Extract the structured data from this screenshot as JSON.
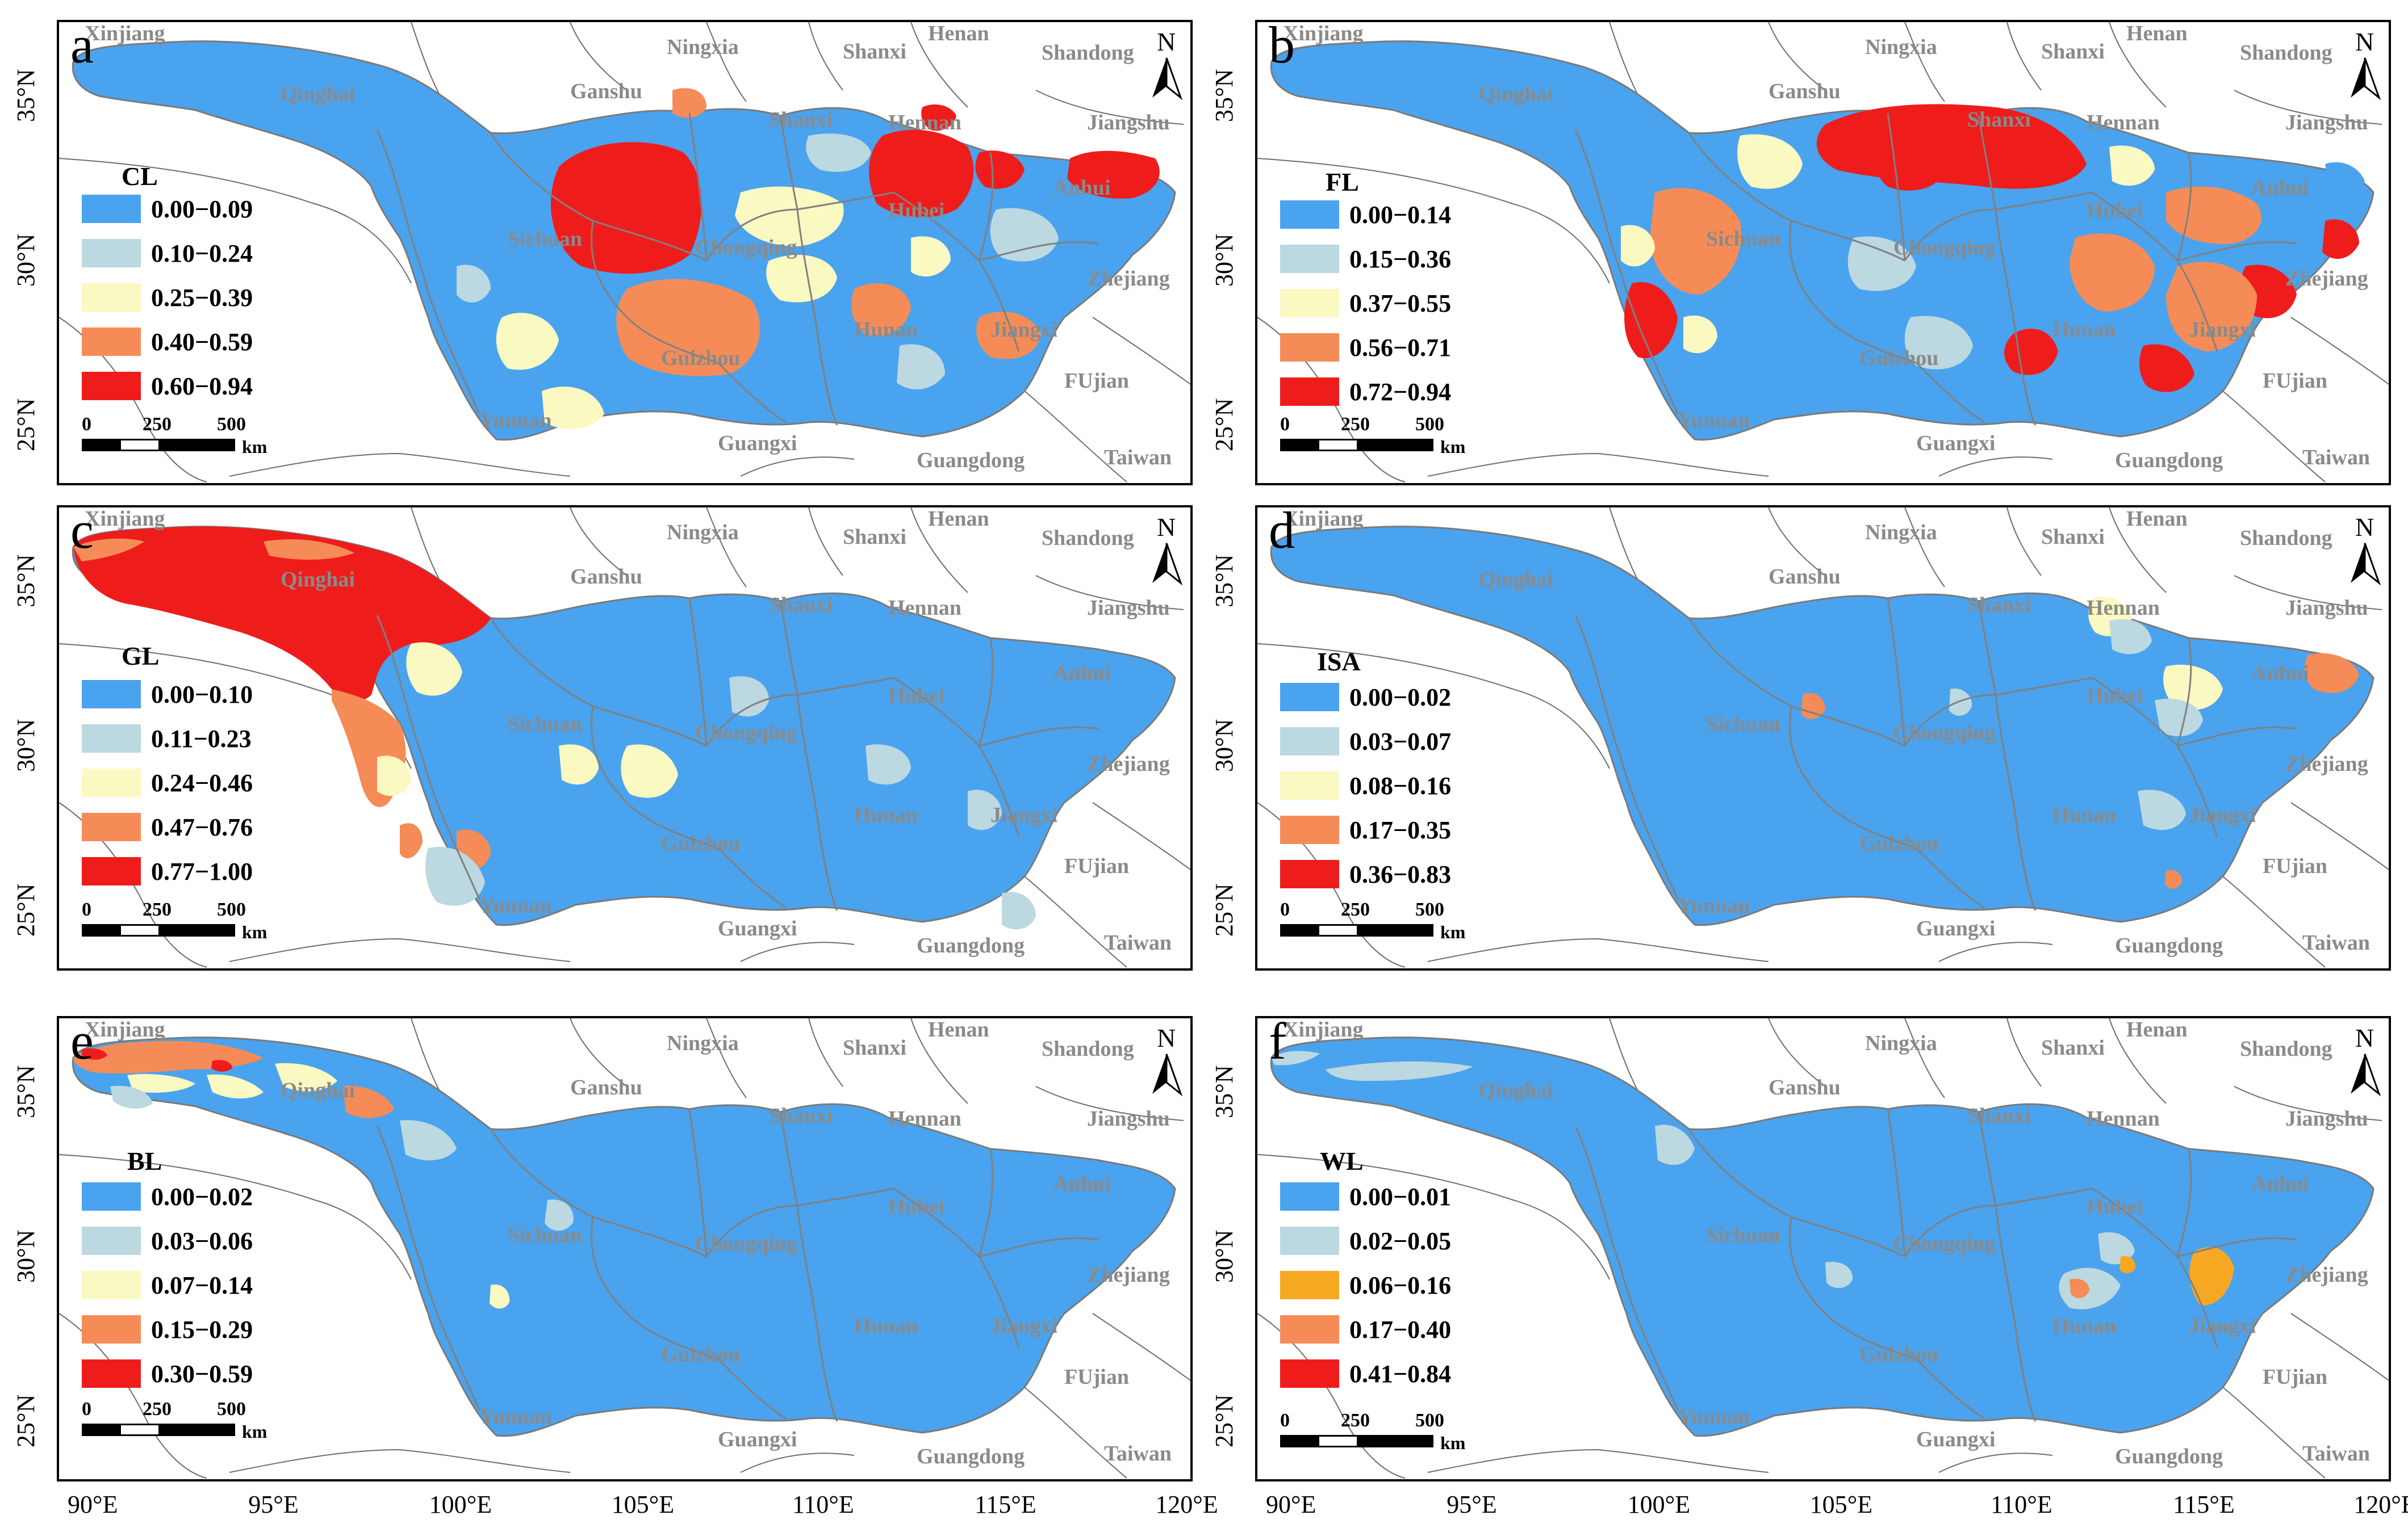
{
  "region_labels": [
    "Xinjiang",
    "Ningxia",
    "Shanxi",
    "Henan",
    "Shandong",
    "Qinghai",
    "Ganshu",
    "Shanxi",
    "Hennan",
    "Jiangshu",
    "Anhui",
    "Sichuan",
    "Chongqing",
    "Hubei",
    "Zhejiang",
    "Hunan",
    "Jiangxi",
    "Guizhou",
    "FUjian",
    "Yunnan",
    "Guangxi",
    "Guangdong",
    "Taiwan"
  ],
  "north_label": "N",
  "scale": {
    "t0": "0",
    "t1": "250",
    "t2": "500",
    "unit": "km"
  },
  "lat_ticks": [
    "35°N",
    "30°N",
    "25°N"
  ],
  "lon_ticks": [
    "90°E",
    "95°E",
    "100°E",
    "105°E",
    "110°E",
    "115°E",
    "120°E"
  ],
  "palette_std": [
    "#4aa3ee",
    "#bcd8e1",
    "#fbf9c2",
    "#f58c57",
    "#ef1c1c"
  ],
  "palette_wl": [
    "#4aa3ee",
    "#bcd8e1",
    "#f7a823",
    "#f58c57",
    "#ef1c1c"
  ],
  "panels": [
    {
      "letter": "a",
      "title": "CL",
      "classes": [
        "0.00−0.09",
        "0.10−0.24",
        "0.25−0.39",
        "0.40−0.59",
        "0.60−0.94"
      ]
    },
    {
      "letter": "b",
      "title": "FL",
      "classes": [
        "0.00−0.14",
        "0.15−0.36",
        "0.37−0.55",
        "0.56−0.71",
        "0.72−0.94"
      ]
    },
    {
      "letter": "c",
      "title": "GL",
      "classes": [
        "0.00−0.10",
        "0.11−0.23",
        "0.24−0.46",
        "0.47−0.76",
        "0.77−1.00"
      ]
    },
    {
      "letter": "d",
      "title": "ISA",
      "classes": [
        "0.00−0.02",
        "0.03−0.07",
        "0.08−0.16",
        "0.17−0.35",
        "0.36−0.83"
      ]
    },
    {
      "letter": "e",
      "title": "BL",
      "classes": [
        "0.00−0.02",
        "0.03−0.06",
        "0.07−0.14",
        "0.15−0.29",
        "0.30−0.59"
      ]
    },
    {
      "letter": "f",
      "title": "WL",
      "classes": [
        "0.00−0.01",
        "0.02−0.05",
        "0.06−0.16",
        "0.17−0.40",
        "0.41−0.84"
      ]
    }
  ]
}
